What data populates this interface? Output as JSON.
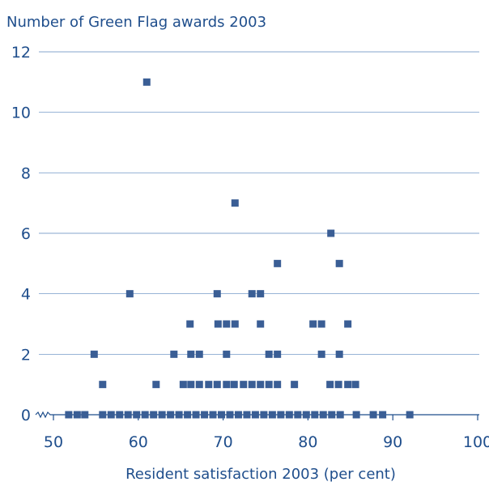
{
  "chart_data": {
    "type": "scatter",
    "title": "",
    "ylabel": "Number of Green Flag awards 2003",
    "xlabel": "Resident satisfaction 2003 (per cent)",
    "xlim": [
      50,
      100
    ],
    "ylim": [
      0,
      12
    ],
    "x_ticks": [
      "50",
      "60",
      "70",
      "80",
      "90",
      "100"
    ],
    "y_ticks": [
      "0",
      "2",
      "4",
      "6",
      "8",
      "10",
      "12"
    ],
    "grid": "horizontal",
    "axis_break": true,
    "marker_color": "#3a5e95",
    "axis_color": "#1f4e8c",
    "series": [
      {
        "points": [
          [
            61.0,
            11
          ],
          [
            71.4,
            7
          ],
          [
            82.7,
            6
          ],
          [
            76.4,
            5
          ],
          [
            83.7,
            5
          ],
          [
            59.0,
            4
          ],
          [
            69.3,
            4
          ],
          [
            73.4,
            4
          ],
          [
            74.4,
            4
          ],
          [
            66.1,
            3
          ],
          [
            69.4,
            3
          ],
          [
            70.4,
            3
          ],
          [
            71.4,
            3
          ],
          [
            74.4,
            3
          ],
          [
            80.6,
            3
          ],
          [
            81.6,
            3
          ],
          [
            84.7,
            3
          ],
          [
            54.8,
            2
          ],
          [
            64.2,
            2
          ],
          [
            66.2,
            2
          ],
          [
            67.2,
            2
          ],
          [
            70.4,
            2
          ],
          [
            75.4,
            2
          ],
          [
            76.4,
            2
          ],
          [
            81.6,
            2
          ],
          [
            83.7,
            2
          ],
          [
            55.8,
            1
          ],
          [
            62.1,
            1
          ],
          [
            65.3,
            1
          ],
          [
            66.2,
            1
          ],
          [
            67.2,
            1
          ],
          [
            68.3,
            1
          ],
          [
            69.3,
            1
          ],
          [
            70.4,
            1
          ],
          [
            71.3,
            1
          ],
          [
            72.4,
            1
          ],
          [
            73.4,
            1
          ],
          [
            74.4,
            1
          ],
          [
            75.4,
            1
          ],
          [
            76.4,
            1
          ],
          [
            78.4,
            1
          ],
          [
            82.6,
            1
          ],
          [
            83.6,
            1
          ],
          [
            84.7,
            1
          ],
          [
            85.6,
            1
          ],
          [
            51.8,
            0
          ],
          [
            52.8,
            0
          ],
          [
            53.7,
            0
          ],
          [
            55.8,
            0
          ],
          [
            56.8,
            0
          ],
          [
            57.8,
            0
          ],
          [
            58.8,
            0
          ],
          [
            59.8,
            0
          ],
          [
            60.8,
            0
          ],
          [
            61.8,
            0
          ],
          [
            62.8,
            0
          ],
          [
            63.8,
            0
          ],
          [
            64.8,
            0
          ],
          [
            65.8,
            0
          ],
          [
            66.8,
            0
          ],
          [
            67.8,
            0
          ],
          [
            68.8,
            0
          ],
          [
            69.8,
            0
          ],
          [
            70.8,
            0
          ],
          [
            71.8,
            0
          ],
          [
            72.8,
            0
          ],
          [
            73.8,
            0
          ],
          [
            74.8,
            0
          ],
          [
            75.8,
            0
          ],
          [
            76.8,
            0
          ],
          [
            77.8,
            0
          ],
          [
            78.8,
            0
          ],
          [
            79.8,
            0
          ],
          [
            80.8,
            0
          ],
          [
            81.8,
            0
          ],
          [
            82.8,
            0
          ],
          [
            83.8,
            0
          ],
          [
            85.7,
            0
          ],
          [
            87.7,
            0
          ],
          [
            88.8,
            0
          ],
          [
            92.0,
            0
          ]
        ]
      }
    ]
  }
}
